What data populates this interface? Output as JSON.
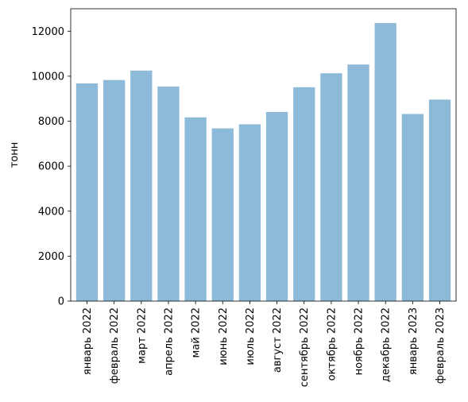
{
  "chart_data": {
    "type": "bar",
    "title": "",
    "xlabel": "",
    "ylabel": "тонн",
    "categories": [
      "январь 2022",
      "февраль 2022",
      "март 2022",
      "апрель 2022",
      "май 2022",
      "июнь 2022",
      "июль 2022",
      "август 2022",
      "сентябрь 2022",
      "октябрь 2022",
      "ноябрь 2022",
      "декабрь 2022",
      "январь 2023",
      "февраль 2023"
    ],
    "values": [
      9680,
      9830,
      10250,
      9540,
      8170,
      7680,
      7860,
      8410,
      9510,
      10130,
      10520,
      12360,
      8320,
      8960
    ],
    "ylim": [
      0,
      13000
    ],
    "yticks": [
      0,
      2000,
      4000,
      6000,
      8000,
      10000,
      12000
    ],
    "grid": false,
    "bar_color": "#8ebad9",
    "axis_color": "#000000"
  }
}
